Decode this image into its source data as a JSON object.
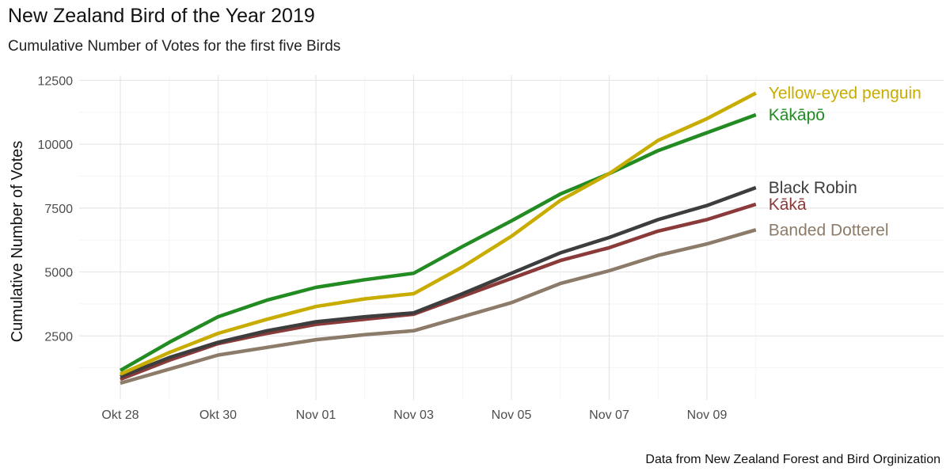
{
  "chart_data": {
    "type": "line",
    "title": "New Zealand Bird of the Year 2019",
    "subtitle": "Cumulative Number of Votes for the first five Birds",
    "ylabel": "Cumulative Number of Votes",
    "xlabel": "",
    "caption": "Data from  New Zealand Forest and Bird Orginization",
    "x": [
      "Okt 28",
      "Okt 29",
      "Okt 30",
      "Okt 31",
      "Nov 01",
      "Nov 02",
      "Nov 03",
      "Nov 04",
      "Nov 05",
      "Nov 06",
      "Nov 07",
      "Nov 08",
      "Nov 09",
      "Nov 10"
    ],
    "x_ticks": [
      "Okt 28",
      "Okt 30",
      "Nov 01",
      "Nov 03",
      "Nov 05",
      "Nov 07",
      "Nov 09"
    ],
    "y_ticks": [
      2500,
      5000,
      7500,
      10000,
      12500
    ],
    "ylim": [
      0,
      12700
    ],
    "grid": true,
    "legend": "direct labels at line ends",
    "series": [
      {
        "name": "Yellow-eyed penguin",
        "color": "#c8ad00",
        "values": [
          1000,
          1850,
          2600,
          3150,
          3650,
          3950,
          4150,
          5200,
          6400,
          7800,
          8850,
          10150,
          11000,
          12000
        ]
      },
      {
        "name": "Kākāpō",
        "color": "#228b22",
        "values": [
          1150,
          2250,
          3250,
          3900,
          4400,
          4700,
          4950,
          6000,
          7000,
          8050,
          8850,
          9750,
          10450,
          11150
        ]
      },
      {
        "name": "Black Robin",
        "color": "#3d3d3d",
        "values": [
          900,
          1650,
          2250,
          2700,
          3050,
          3250,
          3400,
          4150,
          4950,
          5750,
          6350,
          7050,
          7600,
          8300
        ]
      },
      {
        "name": "Kākā",
        "color": "#8b3a3a",
        "values": [
          800,
          1550,
          2200,
          2600,
          2950,
          3150,
          3350,
          4050,
          4750,
          5450,
          5950,
          6600,
          7050,
          7650
        ]
      },
      {
        "name": "Banded Dotterel",
        "color": "#8c7b69",
        "values": [
          650,
          1200,
          1750,
          2050,
          2350,
          2550,
          2700,
          3250,
          3800,
          4550,
          5050,
          5650,
          6100,
          6650
        ]
      }
    ]
  }
}
